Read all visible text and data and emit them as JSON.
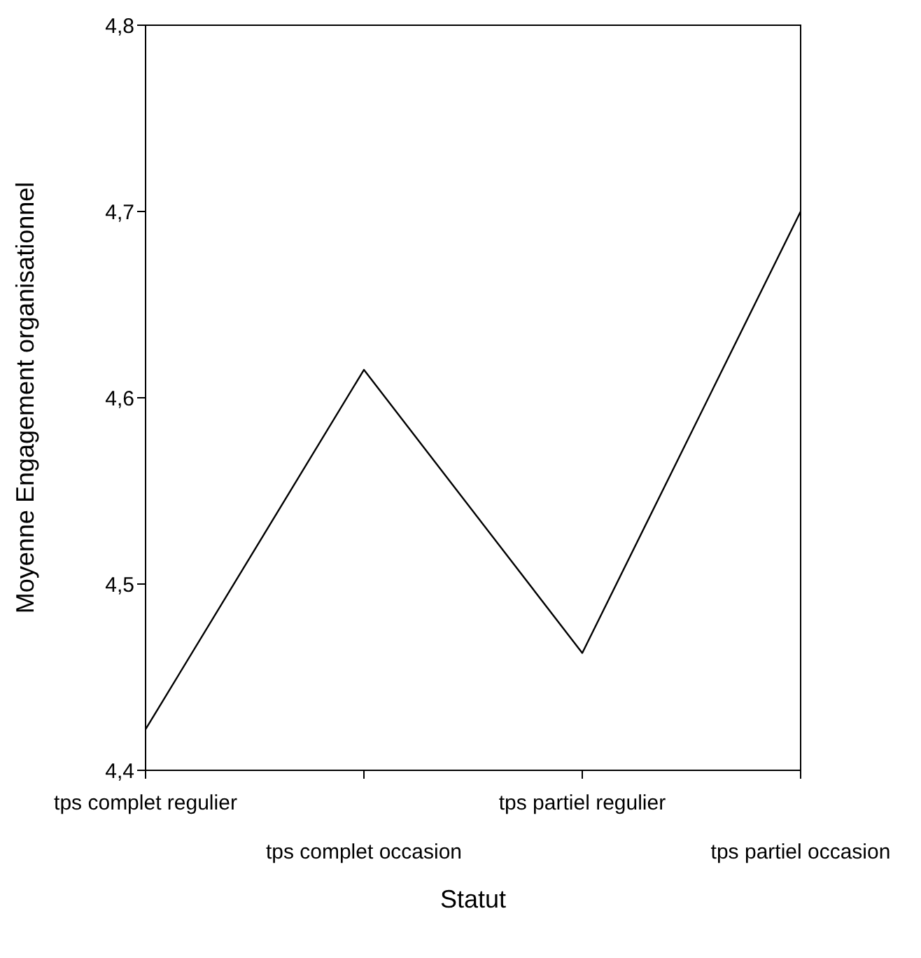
{
  "chart_data": {
    "type": "line",
    "xlabel": "Statut",
    "ylabel": "Moyenne Engagement organisationnel",
    "categories": [
      "tps complet regulier",
      "tps complet occasion",
      "tps partiel regulier",
      "tps partiel occasion"
    ],
    "series": [
      {
        "color": "#000000",
        "values": [
          4.422,
          4.615,
          4.463,
          4.7
        ]
      }
    ],
    "ylim": [
      4.4,
      4.8
    ],
    "yticks": [
      {
        "value": 4.4,
        "label": "4,4"
      },
      {
        "value": 4.5,
        "label": "4,5"
      },
      {
        "value": 4.6,
        "label": "4,6"
      },
      {
        "value": 4.7,
        "label": "4,7"
      },
      {
        "value": 4.8,
        "label": "4,8"
      }
    ],
    "marker": "none",
    "line_style": "solid"
  }
}
